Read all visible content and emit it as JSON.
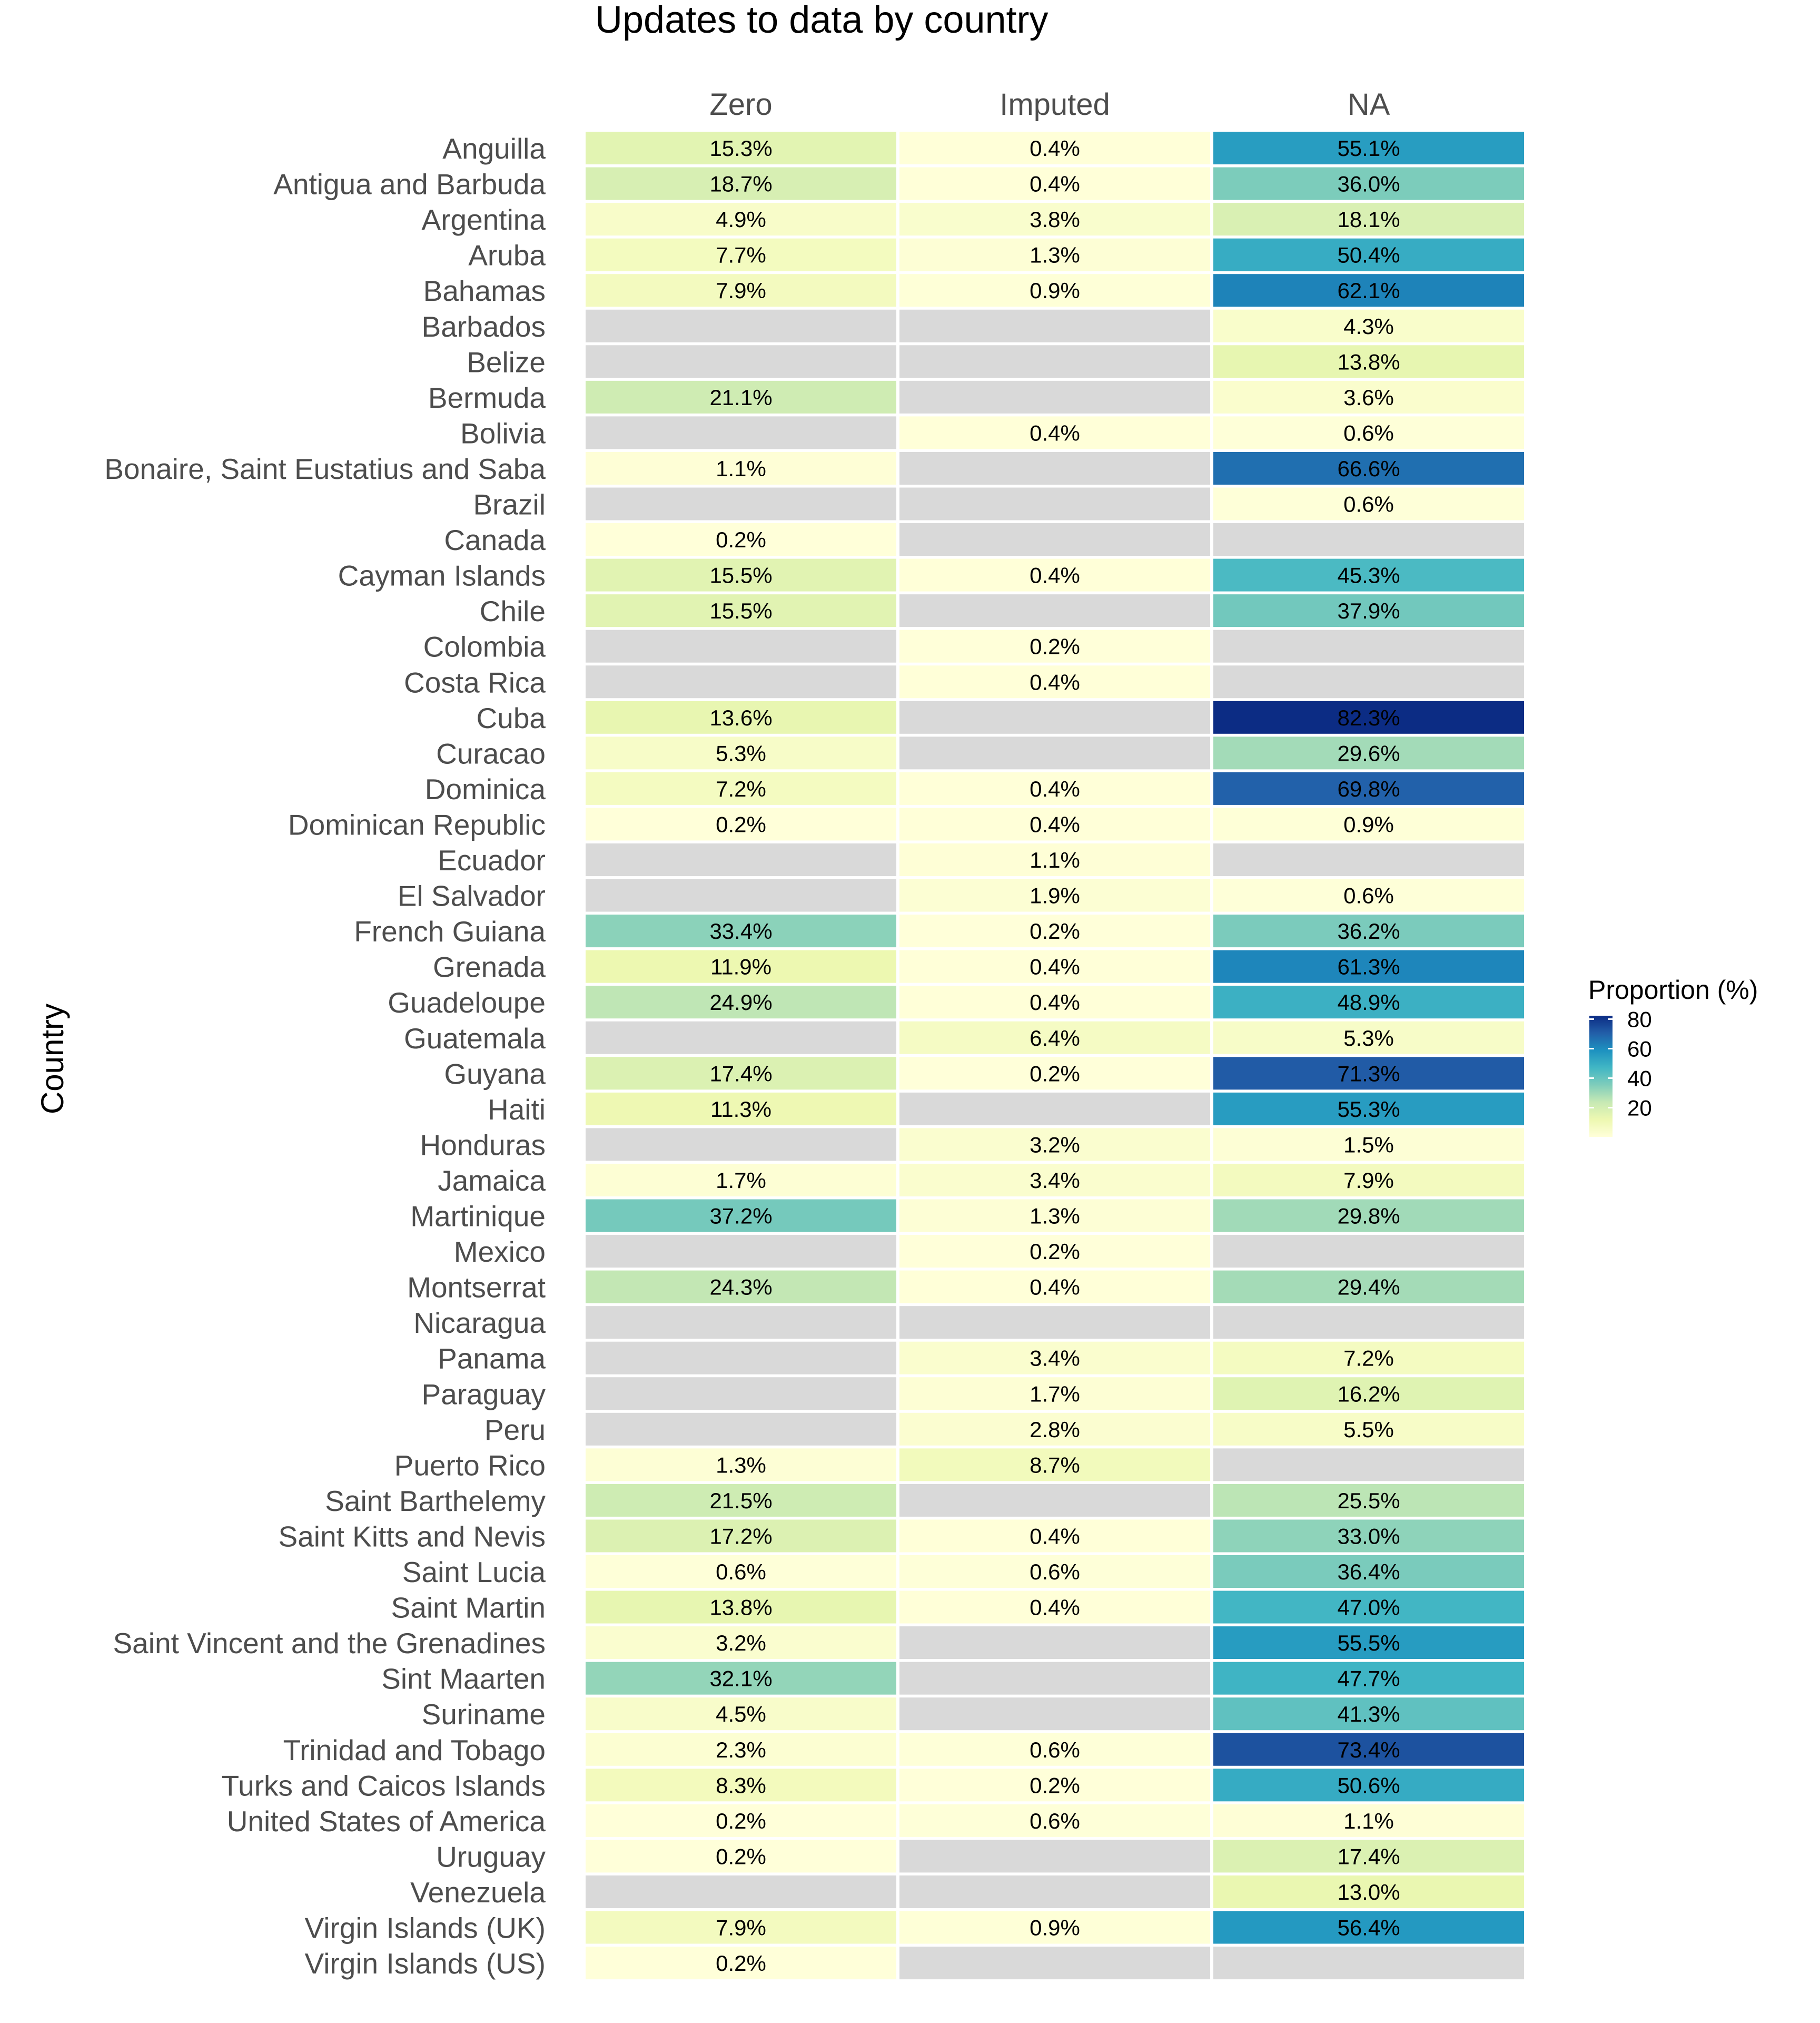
{
  "chart_data": {
    "type": "heatmap",
    "title": "Updates to data by country",
    "xlabel": "",
    "ylabel": "Country",
    "columns": [
      "Zero",
      "Imputed",
      "NA"
    ],
    "rows": [
      {
        "country": "Anguilla",
        "values": [
          15.3,
          0.4,
          55.1
        ],
        "labels": [
          "15.3%",
          "0.4%",
          "55.1%"
        ]
      },
      {
        "country": "Antigua and Barbuda",
        "values": [
          18.7,
          0.4,
          36.0
        ],
        "labels": [
          "18.7%",
          "0.4%",
          "36.0%"
        ]
      },
      {
        "country": "Argentina",
        "values": [
          4.9,
          3.8,
          18.1
        ],
        "labels": [
          "4.9%",
          "3.8%",
          "18.1%"
        ]
      },
      {
        "country": "Aruba",
        "values": [
          7.7,
          1.3,
          50.4
        ],
        "labels": [
          "7.7%",
          "1.3%",
          "50.4%"
        ]
      },
      {
        "country": "Bahamas",
        "values": [
          7.9,
          0.9,
          62.1
        ],
        "labels": [
          "7.9%",
          "0.9%",
          "62.1%"
        ]
      },
      {
        "country": "Barbados",
        "values": [
          null,
          null,
          4.3
        ],
        "labels": [
          "",
          "",
          "4.3%"
        ]
      },
      {
        "country": "Belize",
        "values": [
          null,
          null,
          13.8
        ],
        "labels": [
          "",
          "",
          "13.8%"
        ]
      },
      {
        "country": "Bermuda",
        "values": [
          21.1,
          null,
          3.6
        ],
        "labels": [
          "21.1%",
          "",
          "3.6%"
        ]
      },
      {
        "country": "Bolivia",
        "values": [
          null,
          0.4,
          0.6
        ],
        "labels": [
          "",
          "0.4%",
          "0.6%"
        ]
      },
      {
        "country": "Bonaire, Saint Eustatius and Saba",
        "values": [
          1.1,
          null,
          66.6
        ],
        "labels": [
          "1.1%",
          "",
          "66.6%"
        ]
      },
      {
        "country": "Brazil",
        "values": [
          null,
          null,
          0.6
        ],
        "labels": [
          "",
          "",
          "0.6%"
        ]
      },
      {
        "country": "Canada",
        "values": [
          0.2,
          null,
          null
        ],
        "labels": [
          "0.2%",
          "",
          ""
        ]
      },
      {
        "country": "Cayman Islands",
        "values": [
          15.5,
          0.4,
          45.3
        ],
        "labels": [
          "15.5%",
          "0.4%",
          "45.3%"
        ]
      },
      {
        "country": "Chile",
        "values": [
          15.5,
          null,
          37.9
        ],
        "labels": [
          "15.5%",
          "",
          "37.9%"
        ]
      },
      {
        "country": "Colombia",
        "values": [
          null,
          0.2,
          null
        ],
        "labels": [
          "",
          "0.2%",
          ""
        ]
      },
      {
        "country": "Costa Rica",
        "values": [
          null,
          0.4,
          null
        ],
        "labels": [
          "",
          "0.4%",
          ""
        ]
      },
      {
        "country": "Cuba",
        "values": [
          13.6,
          null,
          82.3
        ],
        "labels": [
          "13.6%",
          "",
          "82.3%"
        ]
      },
      {
        "country": "Curacao",
        "values": [
          5.3,
          null,
          29.6
        ],
        "labels": [
          "5.3%",
          "",
          "29.6%"
        ]
      },
      {
        "country": "Dominica",
        "values": [
          7.2,
          0.4,
          69.8
        ],
        "labels": [
          "7.2%",
          "0.4%",
          "69.8%"
        ]
      },
      {
        "country": "Dominican Republic",
        "values": [
          0.2,
          0.4,
          0.9
        ],
        "labels": [
          "0.2%",
          "0.4%",
          "0.9%"
        ]
      },
      {
        "country": "Ecuador",
        "values": [
          null,
          1.1,
          null
        ],
        "labels": [
          "",
          "1.1%",
          ""
        ]
      },
      {
        "country": "El Salvador",
        "values": [
          null,
          1.9,
          0.6
        ],
        "labels": [
          "",
          "1.9%",
          "0.6%"
        ]
      },
      {
        "country": "French Guiana",
        "values": [
          33.4,
          0.2,
          36.2
        ],
        "labels": [
          "33.4%",
          "0.2%",
          "36.2%"
        ]
      },
      {
        "country": "Grenada",
        "values": [
          11.9,
          0.4,
          61.3
        ],
        "labels": [
          "11.9%",
          "0.4%",
          "61.3%"
        ]
      },
      {
        "country": "Guadeloupe",
        "values": [
          24.9,
          0.4,
          48.9
        ],
        "labels": [
          "24.9%",
          "0.4%",
          "48.9%"
        ]
      },
      {
        "country": "Guatemala",
        "values": [
          null,
          6.4,
          5.3
        ],
        "labels": [
          "",
          "6.4%",
          "5.3%"
        ]
      },
      {
        "country": "Guyana",
        "values": [
          17.4,
          0.2,
          71.3
        ],
        "labels": [
          "17.4%",
          "0.2%",
          "71.3%"
        ]
      },
      {
        "country": "Haiti",
        "values": [
          11.3,
          null,
          55.3
        ],
        "labels": [
          "11.3%",
          "",
          "55.3%"
        ]
      },
      {
        "country": "Honduras",
        "values": [
          null,
          3.2,
          1.5
        ],
        "labels": [
          "",
          "3.2%",
          "1.5%"
        ]
      },
      {
        "country": "Jamaica",
        "values": [
          1.7,
          3.4,
          7.9
        ],
        "labels": [
          "1.7%",
          "3.4%",
          "7.9%"
        ]
      },
      {
        "country": "Martinique",
        "values": [
          37.2,
          1.3,
          29.8
        ],
        "labels": [
          "37.2%",
          "1.3%",
          "29.8%"
        ]
      },
      {
        "country": "Mexico",
        "values": [
          null,
          0.2,
          null
        ],
        "labels": [
          "",
          "0.2%",
          ""
        ]
      },
      {
        "country": "Montserrat",
        "values": [
          24.3,
          0.4,
          29.4
        ],
        "labels": [
          "24.3%",
          "0.4%",
          "29.4%"
        ]
      },
      {
        "country": "Nicaragua",
        "values": [
          null,
          null,
          null
        ],
        "labels": [
          "",
          "",
          ""
        ]
      },
      {
        "country": "Panama",
        "values": [
          null,
          3.4,
          7.2
        ],
        "labels": [
          "",
          "3.4%",
          "7.2%"
        ]
      },
      {
        "country": "Paraguay",
        "values": [
          null,
          1.7,
          16.2
        ],
        "labels": [
          "",
          "1.7%",
          "16.2%"
        ]
      },
      {
        "country": "Peru",
        "values": [
          null,
          2.8,
          5.5
        ],
        "labels": [
          "",
          "2.8%",
          "5.5%"
        ]
      },
      {
        "country": "Puerto Rico",
        "values": [
          1.3,
          8.7,
          null
        ],
        "labels": [
          "1.3%",
          "8.7%",
          ""
        ]
      },
      {
        "country": "Saint Barthelemy",
        "values": [
          21.5,
          null,
          25.5
        ],
        "labels": [
          "21.5%",
          "",
          "25.5%"
        ]
      },
      {
        "country": "Saint Kitts and Nevis",
        "values": [
          17.2,
          0.4,
          33.0
        ],
        "labels": [
          "17.2%",
          "0.4%",
          "33.0%"
        ]
      },
      {
        "country": "Saint Lucia",
        "values": [
          0.6,
          0.6,
          36.4
        ],
        "labels": [
          "0.6%",
          "0.6%",
          "36.4%"
        ]
      },
      {
        "country": "Saint Martin",
        "values": [
          13.8,
          0.4,
          47.0
        ],
        "labels": [
          "13.8%",
          "0.4%",
          "47.0%"
        ]
      },
      {
        "country": "Saint Vincent and the Grenadines",
        "values": [
          3.2,
          null,
          55.5
        ],
        "labels": [
          "3.2%",
          "",
          "55.5%"
        ]
      },
      {
        "country": "Sint Maarten",
        "values": [
          32.1,
          null,
          47.7
        ],
        "labels": [
          "32.1%",
          "",
          "47.7%"
        ]
      },
      {
        "country": "Suriname",
        "values": [
          4.5,
          null,
          41.3
        ],
        "labels": [
          "4.5%",
          "",
          "41.3%"
        ]
      },
      {
        "country": "Trinidad and Tobago",
        "values": [
          2.3,
          0.6,
          73.4
        ],
        "labels": [
          "2.3%",
          "0.6%",
          "73.4%"
        ]
      },
      {
        "country": "Turks and Caicos Islands",
        "values": [
          8.3,
          0.2,
          50.6
        ],
        "labels": [
          "8.3%",
          "0.2%",
          "50.6%"
        ]
      },
      {
        "country": "United States of America",
        "values": [
          0.2,
          0.6,
          1.1
        ],
        "labels": [
          "0.2%",
          "0.6%",
          "1.1%"
        ]
      },
      {
        "country": "Uruguay",
        "values": [
          0.2,
          null,
          17.4
        ],
        "labels": [
          "0.2%",
          "",
          "17.4%"
        ]
      },
      {
        "country": "Venezuela",
        "values": [
          null,
          null,
          13.0
        ],
        "labels": [
          "",
          "",
          "13.0%"
        ]
      },
      {
        "country": "Virgin Islands (UK)",
        "values": [
          7.9,
          0.9,
          56.4
        ],
        "labels": [
          "7.9%",
          "0.9%",
          "56.4%"
        ]
      },
      {
        "country": "Virgin Islands (US)",
        "values": [
          0.2,
          null,
          null
        ],
        "labels": [
          "0.2%",
          "",
          ""
        ]
      }
    ],
    "legend": {
      "title": "Proportion (%)",
      "ticks": [
        80,
        60,
        40,
        20
      ],
      "range": [
        0.2,
        82.3
      ],
      "placement": "right"
    },
    "colors": {
      "missing": "#d9d9d9",
      "scale": [
        "#ffffd9",
        "#edf8b1",
        "#c7e9b4",
        "#7fcdbb",
        "#41b6c4",
        "#1d91c0",
        "#225ea8",
        "#0c2c84"
      ]
    }
  }
}
